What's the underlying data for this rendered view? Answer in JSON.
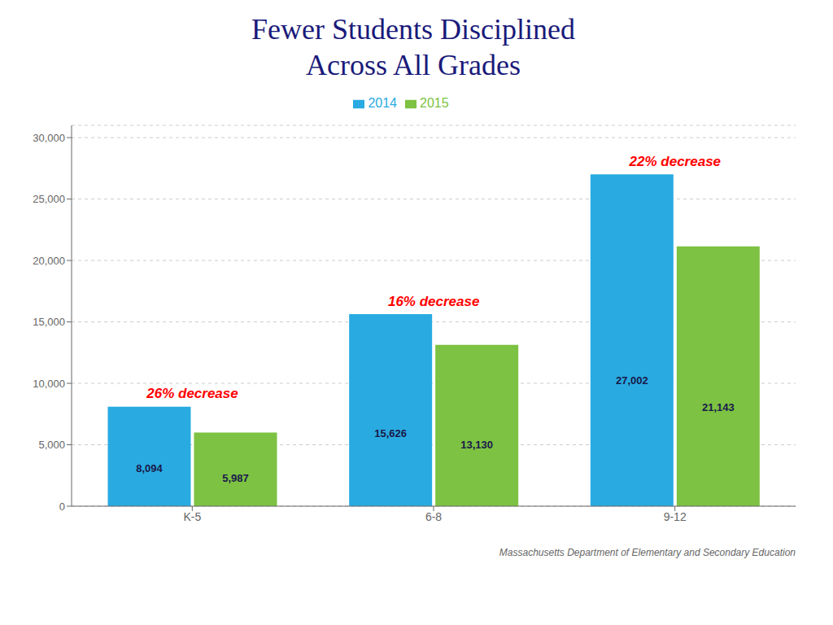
{
  "chart_data": {
    "type": "bar",
    "title": "Fewer Students Disciplined",
    "subtitle": "Across All Grades",
    "categories": [
      "K-5",
      "6-8",
      "9-12"
    ],
    "series": [
      {
        "name": "2014",
        "color": "#29abe2",
        "values": [
          8094,
          15626,
          27002
        ],
        "value_labels": [
          "8,094",
          "15,626",
          "27,002"
        ]
      },
      {
        "name": "2015",
        "color": "#7dc242",
        "values": [
          5987,
          13130,
          21143
        ],
        "value_labels": [
          "5,987",
          "13,130",
          "21,143"
        ]
      }
    ],
    "ylim": [
      0,
      31000
    ],
    "yticks": [
      0,
      {
        "value": 5000,
        "label": "5,000"
      },
      {
        "value": 10000,
        "label": "10,000"
      },
      {
        "value": 15000,
        "label": "15,000"
      },
      {
        "value": 20000,
        "label": "20,000"
      },
      {
        "value": 25000,
        "label": "25,000"
      },
      {
        "value": 30000,
        "label": "30,000"
      }
    ],
    "grid": true,
    "legend": "top",
    "data_labels": true,
    "annotations": [
      {
        "category": "K-5",
        "text": "26% decrease",
        "color": "#ff0000"
      },
      {
        "category": "6-8",
        "text": "16% decrease",
        "color": "#ff0000"
      },
      {
        "category": "9-12",
        "text": "22% decrease",
        "color": "#ff0000"
      }
    ],
    "footer": "Massachusetts Department of Elementary and Secondary Education"
  }
}
